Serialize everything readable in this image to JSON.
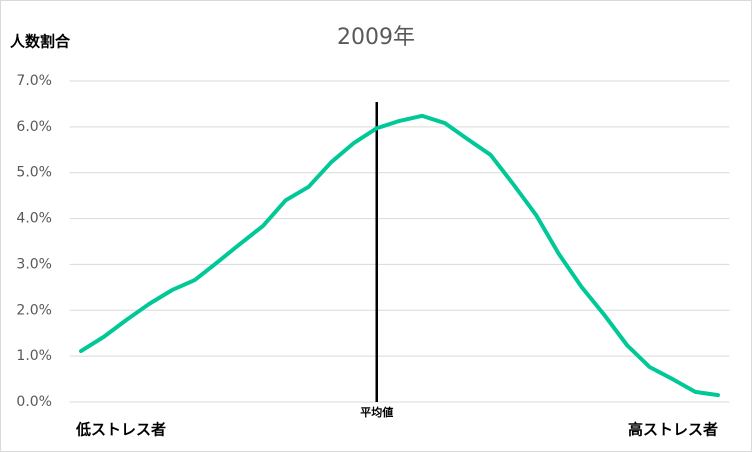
{
  "chart_data": {
    "type": "line",
    "title": "2009年",
    "y_label": "人数割合",
    "annotations": {
      "left": "低ストレス者",
      "right": "高ストレス者"
    },
    "categories": [
      null,
      null,
      null,
      null,
      null,
      null,
      null,
      null,
      null,
      null,
      null,
      null,
      null,
      "平均値",
      null,
      null,
      null,
      null,
      null,
      null,
      null,
      null,
      null,
      null,
      null,
      null,
      null,
      null,
      null
    ],
    "series": [
      {
        "name": "2009年",
        "color": "#00c896",
        "values": [
          1.11,
          1.42,
          1.79,
          2.14,
          2.44,
          2.66,
          3.05,
          3.45,
          3.84,
          4.4,
          4.69,
          5.23,
          5.65,
          5.97,
          6.13,
          6.24,
          6.08,
          5.73,
          5.39,
          4.75,
          4.08,
          3.23,
          2.51,
          1.9,
          1.24,
          0.76,
          0.5,
          0.22,
          0.15
        ]
      }
    ],
    "ylim": [
      0,
      7
    ],
    "yticks": [
      {
        "value": 0,
        "label": "0.0%"
      },
      {
        "value": 1,
        "label": "1.0%"
      },
      {
        "value": 2,
        "label": "2.0%"
      },
      {
        "value": 3,
        "label": "3.0%"
      },
      {
        "value": 4,
        "label": "4.0%"
      },
      {
        "value": 5,
        "label": "5.0%"
      },
      {
        "value": 6,
        "label": "6.0%"
      },
      {
        "value": 7,
        "label": "7.0%"
      }
    ],
    "grid": true
  }
}
